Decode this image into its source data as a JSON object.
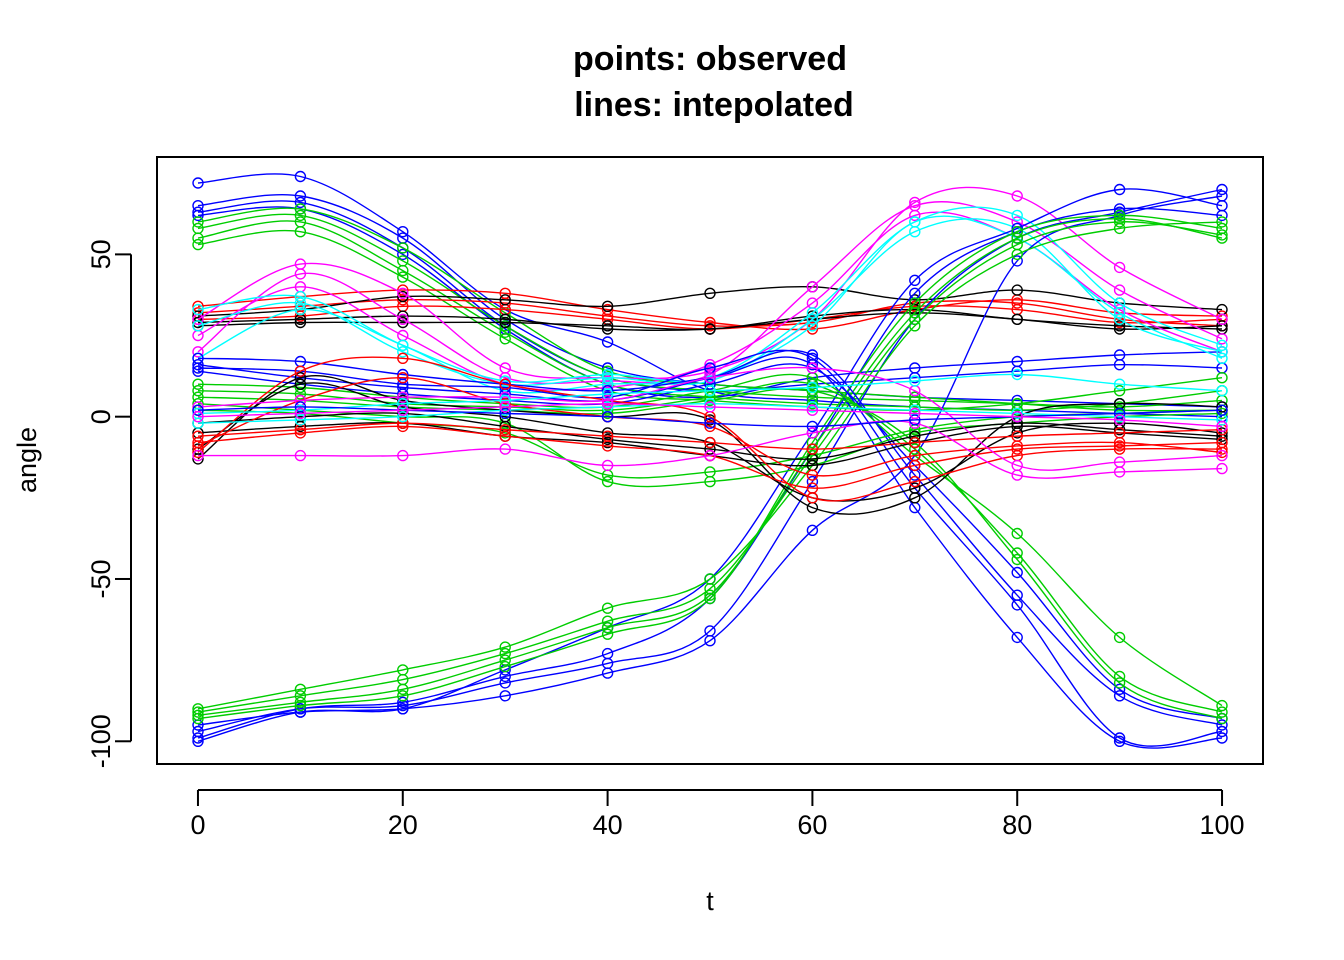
{
  "chart_data": {
    "type": "line",
    "title": "points: observed",
    "subtitle": "lines: intepolated",
    "xlabel": "t",
    "ylabel": "angle",
    "xlim": [
      -4,
      104
    ],
    "ylim": [
      -107,
      80
    ],
    "x_ticks": [
      "0",
      "20",
      "40",
      "60",
      "80",
      "100"
    ],
    "y_ticks": [
      "-100",
      "-50",
      "0",
      "50"
    ],
    "grid": false,
    "legend": "none",
    "observation_times": [
      0,
      10,
      20,
      30,
      40,
      50,
      60,
      70,
      80,
      90,
      100
    ],
    "palette": [
      "#000000",
      "#ff0000",
      "#00cd00",
      "#0000ff",
      "#00ffff",
      "#ff00ff"
    ],
    "series": [
      {
        "color": "#0000ff",
        "values": [
          72,
          74,
          57,
          33,
          23,
          8,
          5,
          3,
          2,
          1,
          0
        ]
      },
      {
        "color": "#0000ff",
        "values": [
          65,
          68,
          55,
          30,
          15,
          10,
          8,
          6,
          5,
          4,
          3
        ]
      },
      {
        "color": "#0000ff",
        "values": [
          63,
          66,
          52,
          28,
          12,
          8,
          10,
          12,
          14,
          16,
          15
        ]
      },
      {
        "color": "#0000ff",
        "values": [
          62,
          64,
          50,
          27,
          10,
          6,
          12,
          15,
          17,
          19,
          20
        ]
      },
      {
        "color": "#00cd00",
        "values": [
          60,
          64,
          52,
          32,
          14,
          10,
          8,
          6,
          4,
          2,
          2
        ]
      },
      {
        "color": "#00cd00",
        "values": [
          58,
          62,
          48,
          28,
          12,
          8,
          6,
          5,
          4,
          3,
          5
        ]
      },
      {
        "color": "#00cd00",
        "values": [
          55,
          60,
          45,
          26,
          10,
          6,
          4,
          3,
          2,
          4,
          8
        ]
      },
      {
        "color": "#00cd00",
        "values": [
          53,
          57,
          43,
          24,
          8,
          5,
          3,
          2,
          4,
          8,
          12
        ]
      },
      {
        "color": "#ff0000",
        "values": [
          34,
          37,
          39,
          38,
          33,
          29,
          27,
          33,
          36,
          32,
          31
        ]
      },
      {
        "color": "#ff0000",
        "values": [
          32,
          34,
          36,
          35,
          31,
          28,
          29,
          35,
          35,
          30,
          28
        ]
      },
      {
        "color": "#ff0000",
        "values": [
          30,
          31,
          34,
          33,
          30,
          27,
          30,
          34,
          33,
          29,
          30
        ]
      },
      {
        "color": "#000000",
        "values": [
          31,
          33,
          37,
          36,
          34,
          38,
          40,
          36,
          39,
          35,
          33
        ]
      },
      {
        "color": "#000000",
        "values": [
          29,
          30,
          31,
          30,
          27,
          27,
          30,
          32,
          30,
          27,
          28
        ]
      },
      {
        "color": "#000000",
        "values": [
          28,
          29,
          29,
          29,
          28,
          27,
          31,
          33,
          30,
          28,
          27
        ]
      },
      {
        "color": "#ff00ff",
        "values": [
          30,
          47,
          38,
          15,
          12,
          14,
          30,
          66,
          68,
          46,
          30
        ]
      },
      {
        "color": "#ff00ff",
        "values": [
          20,
          44,
          30,
          12,
          11,
          13,
          40,
          65,
          60,
          39,
          24
        ]
      },
      {
        "color": "#ff00ff",
        "values": [
          25,
          40,
          25,
          10,
          9,
          16,
          35,
          62,
          55,
          33,
          20
        ]
      },
      {
        "color": "#00ffff",
        "values": [
          33,
          37,
          22,
          11,
          13,
          12,
          32,
          60,
          62,
          35,
          22
        ]
      },
      {
        "color": "#00ffff",
        "values": [
          28,
          35,
          20,
          10,
          12,
          11,
          30,
          57,
          58,
          30,
          20
        ]
      },
      {
        "color": "#00ffff",
        "values": [
          18,
          33,
          22,
          8,
          10,
          12,
          28,
          60,
          55,
          32,
          18
        ]
      },
      {
        "color": "#0000ff",
        "values": [
          -95,
          -91,
          -90,
          -86,
          -79,
          -69,
          -35,
          -12,
          48,
          62,
          68
        ]
      },
      {
        "color": "#0000ff",
        "values": [
          -97,
          -90,
          -89,
          -82,
          -76,
          -66,
          -20,
          30,
          55,
          63,
          70
        ]
      },
      {
        "color": "#0000ff",
        "values": [
          -99,
          -90,
          -88,
          -80,
          -73,
          -56,
          -10,
          38,
          57,
          64,
          62
        ]
      },
      {
        "color": "#0000ff",
        "values": [
          -100,
          -91,
          -90,
          -78,
          -65,
          -50,
          -5,
          42,
          58,
          70,
          65
        ]
      },
      {
        "color": "#00cd00",
        "values": [
          -90,
          -84,
          -78,
          -71,
          -59,
          -50,
          -15,
          28,
          50,
          58,
          60
        ]
      },
      {
        "color": "#00cd00",
        "values": [
          -91,
          -86,
          -81,
          -73,
          -63,
          -53,
          -12,
          30,
          53,
          60,
          56
        ]
      },
      {
        "color": "#00cd00",
        "values": [
          -92,
          -88,
          -84,
          -75,
          -65,
          -55,
          -10,
          32,
          55,
          61,
          55
        ]
      },
      {
        "color": "#00cd00",
        "values": [
          -93,
          -89,
          -86,
          -77,
          -67,
          -56,
          -8,
          35,
          57,
          62,
          58
        ]
      },
      {
        "color": "#0000ff",
        "values": [
          18,
          17,
          13,
          10,
          8,
          12,
          16,
          -28,
          -68,
          -100,
          -99
        ]
      },
      {
        "color": "#0000ff",
        "values": [
          15,
          14,
          10,
          9,
          6,
          15,
          18,
          -22,
          -58,
          -99,
          -97
        ]
      },
      {
        "color": "#0000ff",
        "values": [
          16,
          12,
          9,
          7,
          5,
          12,
          19,
          -18,
          -55,
          -86,
          -95
        ]
      },
      {
        "color": "#0000ff",
        "values": [
          14,
          10,
          7,
          5,
          4,
          10,
          15,
          -15,
          -48,
          -84,
          -93
        ]
      },
      {
        "color": "#00cd00",
        "values": [
          10,
          9,
          6,
          4,
          3,
          8,
          12,
          -12,
          -36,
          -68,
          -89
        ]
      },
      {
        "color": "#00cd00",
        "values": [
          8,
          7,
          4,
          3,
          2,
          6,
          10,
          -10,
          -42,
          -80,
          -91
        ]
      },
      {
        "color": "#00cd00",
        "values": [
          6,
          5,
          3,
          2,
          1,
          5,
          8,
          -8,
          -44,
          -82,
          -93
        ]
      },
      {
        "color": "#00cd00",
        "values": [
          4,
          2,
          0,
          -2,
          -20,
          -20,
          -15,
          -5,
          -2,
          0,
          1
        ]
      },
      {
        "color": "#00cd00",
        "values": [
          2,
          1,
          -2,
          -5,
          -18,
          -17,
          -12,
          -4,
          0,
          1,
          2
        ]
      },
      {
        "color": "#000000",
        "values": [
          -13,
          12,
          5,
          2,
          0,
          -1,
          -28,
          -25,
          0,
          4,
          3
        ]
      },
      {
        "color": "#000000",
        "values": [
          -10,
          10,
          3,
          0,
          -5,
          -8,
          -25,
          -22,
          -5,
          -2,
          -5
        ]
      },
      {
        "color": "#000000",
        "values": [
          -5,
          -3,
          -2,
          -6,
          -8,
          -12,
          -15,
          -8,
          -3,
          -5,
          -7
        ]
      },
      {
        "color": "#000000",
        "values": [
          -2,
          0,
          1,
          -3,
          -7,
          -10,
          -13,
          -6,
          -2,
          -4,
          -6
        ]
      },
      {
        "color": "#ff0000",
        "values": [
          -11,
          14,
          18,
          10,
          5,
          0,
          -25,
          -20,
          -12,
          -10,
          -10
        ]
      },
      {
        "color": "#ff0000",
        "values": [
          -8,
          -5,
          -3,
          -6,
          -9,
          -12,
          -22,
          -15,
          -10,
          -9,
          -8
        ]
      },
      {
        "color": "#ff0000",
        "values": [
          -6,
          -4,
          -2,
          -4,
          -6,
          -8,
          -10,
          -8,
          -6,
          -5,
          -4
        ]
      },
      {
        "color": "#ff0000",
        "values": [
          -9,
          5,
          12,
          4,
          0,
          -3,
          -18,
          -12,
          -9,
          -8,
          -11
        ]
      },
      {
        "color": "#ff00ff",
        "values": [
          -12,
          -12,
          -12,
          -10,
          -15,
          -12,
          -5,
          -2,
          -18,
          -17,
          -16
        ]
      },
      {
        "color": "#ff00ff",
        "values": [
          3,
          5,
          6,
          6,
          5,
          12,
          15,
          8,
          -15,
          -14,
          -12
        ]
      },
      {
        "color": "#00ffff",
        "values": [
          1,
          2,
          4,
          5,
          7,
          8,
          9,
          11,
          13,
          10,
          8
        ]
      },
      {
        "color": "#00ffff",
        "values": [
          -2,
          -1,
          0,
          2,
          3,
          4,
          3,
          2,
          1,
          0,
          -1
        ]
      },
      {
        "color": "#0000ff",
        "values": [
          2,
          3,
          2,
          1,
          0,
          -2,
          -3,
          -1,
          0,
          1,
          2
        ]
      },
      {
        "color": "#ff00ff",
        "values": [
          0,
          1,
          2,
          3,
          4,
          3,
          2,
          1,
          0,
          -1,
          -3
        ]
      }
    ]
  }
}
